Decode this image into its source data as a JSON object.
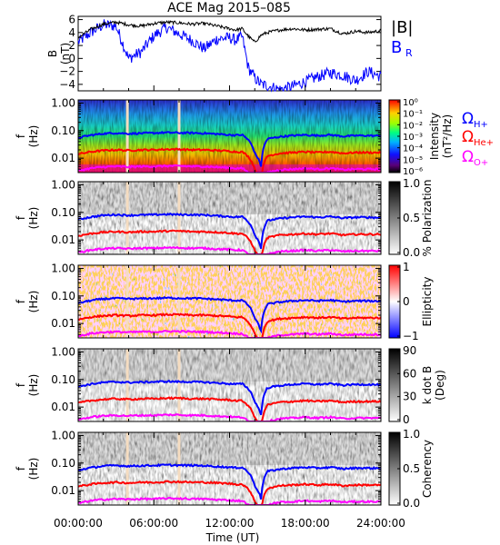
{
  "title": "ACE Mag 2015–085",
  "xaxis": {
    "label": "Time (UT)",
    "ticks": [
      "00:00:00",
      "06:00:00",
      "12:00:00",
      "18:00:00",
      "24:00:00"
    ],
    "range_hours": [
      0,
      24
    ]
  },
  "panel_b": {
    "ylabel_main": "B",
    "ylabel_unit": "(nT)",
    "yticks": [
      "6",
      "4",
      "2",
      "0",
      "−2",
      "−4"
    ],
    "ylim": [
      -5,
      6.5
    ],
    "legend": {
      "btot": "|B|",
      "br_main": "B",
      "br_sub": "R"
    },
    "colors": {
      "btot": "#000000",
      "br": "#0000ff"
    }
  },
  "spec_panels": [
    {
      "id": "intensity",
      "colorbar_title": "Intensity",
      "colorbar_unit": "(nT²/Hz)",
      "cb_ticks": [
        "10⁰",
        "10⁻¹",
        "10⁻²",
        "10⁻³",
        "10⁻⁴",
        "10⁻⁵",
        "10⁻⁶"
      ]
    },
    {
      "id": "polarization",
      "colorbar_title": "% Polarization",
      "colorbar_unit": "",
      "cb_ticks": [
        "1.0",
        "0.5",
        "0.0"
      ]
    },
    {
      "id": "ellipticity",
      "colorbar_title": "Ellipticity",
      "colorbar_unit": "",
      "cb_ticks": [
        "1",
        "0",
        "−1"
      ]
    },
    {
      "id": "kdotb",
      "colorbar_title": "k dot B",
      "colorbar_unit": "(Deg)",
      "cb_ticks": [
        "90",
        "60",
        "30",
        "0"
      ]
    },
    {
      "id": "coherency",
      "colorbar_title": "Coherency",
      "colorbar_unit": "",
      "cb_ticks": [
        "1.0",
        "0.5",
        "0.0"
      ]
    }
  ],
  "freq_axis": {
    "ylabel_main": "f",
    "ylabel_unit": "(Hz)",
    "ticks": [
      "1.00",
      "0.10",
      "0.01"
    ]
  },
  "gyro_legend": {
    "h": {
      "main": "Ω",
      "sub": "H+",
      "color": "#0000ff"
    },
    "he": {
      "main": "Ω",
      "sub": "He+",
      "color": "#ff0000"
    },
    "o": {
      "main": "Ω",
      "sub": "O+",
      "color": "#ff00ff"
    }
  },
  "data_gaps_hours": [
    3.9,
    8.0
  ],
  "chart_data": {
    "type": "line",
    "title": "ACE Mag 2015–085",
    "xlabel": "Time (UT)",
    "x_hours": [
      0,
      1,
      2,
      3,
      4,
      5,
      6,
      7,
      8,
      9,
      10,
      11,
      12,
      12.5,
      13,
      13.5,
      14,
      14.5,
      15,
      16,
      17,
      18,
      19,
      20,
      21,
      22,
      23,
      24
    ],
    "series": [
      {
        "name": "|B|",
        "values": [
          3.2,
          4.5,
          5.3,
          5.6,
          5.2,
          5.0,
          5.4,
          5.6,
          5.5,
          5.3,
          5.4,
          5.0,
          4.6,
          4.4,
          4.6,
          3.4,
          2.5,
          3.6,
          4.0,
          4.4,
          4.6,
          4.4,
          4.5,
          4.6,
          3.8,
          4.2,
          4.0,
          4.3
        ]
      },
      {
        "name": "B_R",
        "values": [
          2.5,
          4.0,
          5.2,
          5.0,
          0.0,
          1.0,
          3.5,
          4.8,
          3.8,
          2.8,
          1.5,
          3.0,
          3.2,
          2.8,
          3.4,
          -1.5,
          -3.0,
          -4.0,
          -4.2,
          -4.8,
          -4.3,
          -3.6,
          -2.8,
          -2.2,
          -2.6,
          -3.4,
          -2.0,
          -2.8
        ]
      },
      {
        "name": "ΩH+ (Hz)",
        "values": [
          0.055,
          0.068,
          0.078,
          0.082,
          0.078,
          0.08,
          0.082,
          0.085,
          0.083,
          0.082,
          0.08,
          0.075,
          0.07,
          0.068,
          0.07,
          0.045,
          0.015,
          0.005,
          0.05,
          0.06,
          0.066,
          0.07,
          0.066,
          0.07,
          0.062,
          0.066,
          0.066,
          0.064
        ]
      },
      {
        "name": "ΩHe+ (Hz)",
        "values": [
          0.014,
          0.017,
          0.019,
          0.02,
          0.019,
          0.02,
          0.02,
          0.021,
          0.021,
          0.02,
          0.02,
          0.019,
          0.018,
          0.017,
          0.017,
          0.011,
          0.004,
          0.0013,
          0.012,
          0.015,
          0.016,
          0.017,
          0.016,
          0.017,
          0.015,
          0.016,
          0.016,
          0.016
        ]
      },
      {
        "name": "ΩO+ (Hz)",
        "values": [
          0.0035,
          0.0043,
          0.0048,
          0.005,
          0.0048,
          0.005,
          0.005,
          0.0052,
          0.0052,
          0.005,
          0.005,
          0.0047,
          0.0045,
          0.0043,
          0.0043,
          0.003,
          0.0012,
          0.0009,
          0.003,
          0.0038,
          0.004,
          0.0043,
          0.004,
          0.0043,
          0.0038,
          0.004,
          0.004,
          0.004
        ]
      }
    ]
  }
}
